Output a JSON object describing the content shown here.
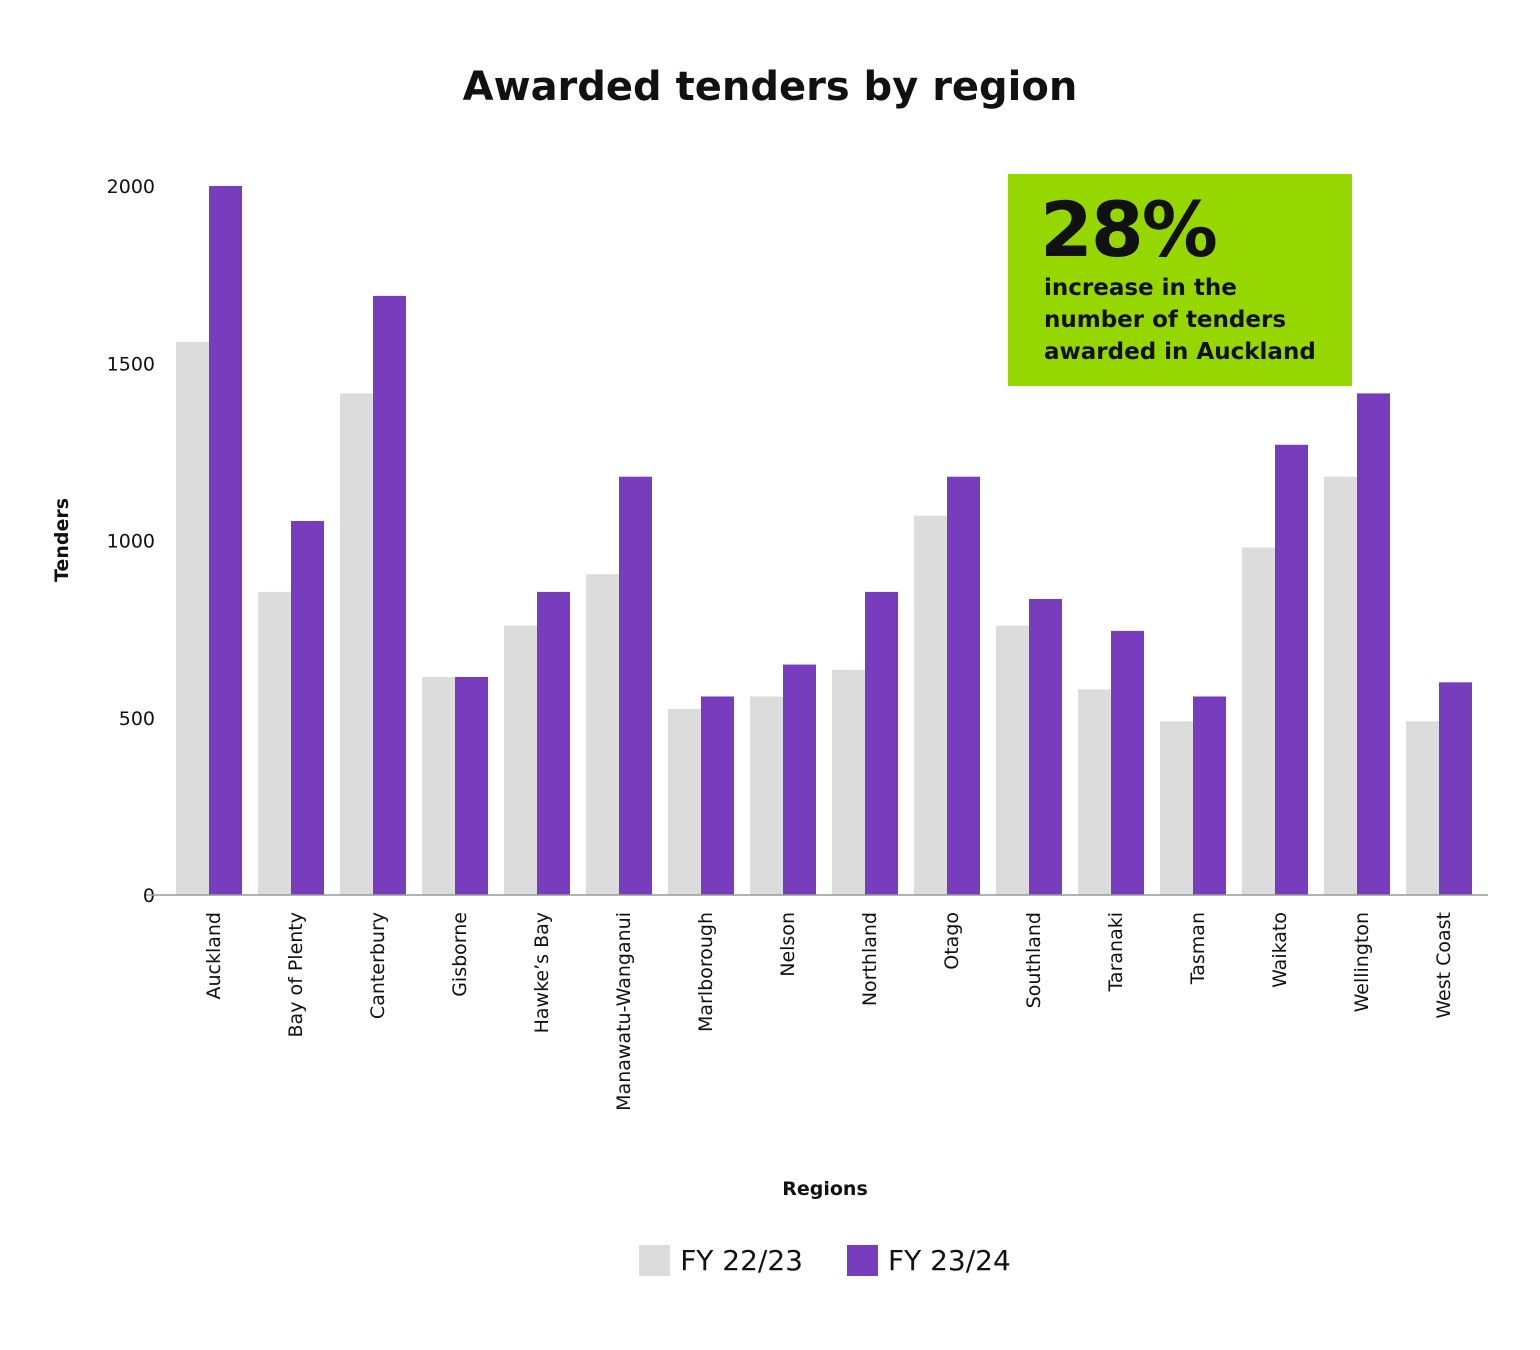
{
  "chart_data": {
    "type": "bar",
    "title": "Awarded tenders by region",
    "xlabel": "Regions",
    "ylabel": "Tenders",
    "categories": [
      "Auckland",
      "Bay of Plenty",
      "Canterbury",
      "Gisborne",
      "Hawke’s Bay",
      "Manawatu-Wanganui",
      "Marlborough",
      "Nelson",
      "Northland",
      "Otago",
      "Southland",
      "Taranaki",
      "Tasman",
      "Waikato",
      "Wellington",
      "West Coast"
    ],
    "series": [
      {
        "name": "FY 22/23",
        "color": "#dcdcdc",
        "values": [
          1560,
          855,
          1415,
          615,
          760,
          905,
          525,
          560,
          635,
          1070,
          760,
          580,
          490,
          980,
          1180,
          490
        ]
      },
      {
        "name": "FY 23/24",
        "color": "#773dbd",
        "values": [
          2000,
          1055,
          1690,
          615,
          855,
          1180,
          560,
          650,
          855,
          1180,
          835,
          745,
          560,
          1270,
          1415,
          600
        ]
      }
    ],
    "ylim": [
      0,
      2000
    ],
    "yticks": [
      0,
      500,
      1000,
      1500,
      2000
    ],
    "grid": false,
    "legend": "bottom"
  },
  "callout": {
    "value": "28%",
    "text": "increase in the number of tenders awarded in Auckland",
    "color": "#97d700"
  }
}
